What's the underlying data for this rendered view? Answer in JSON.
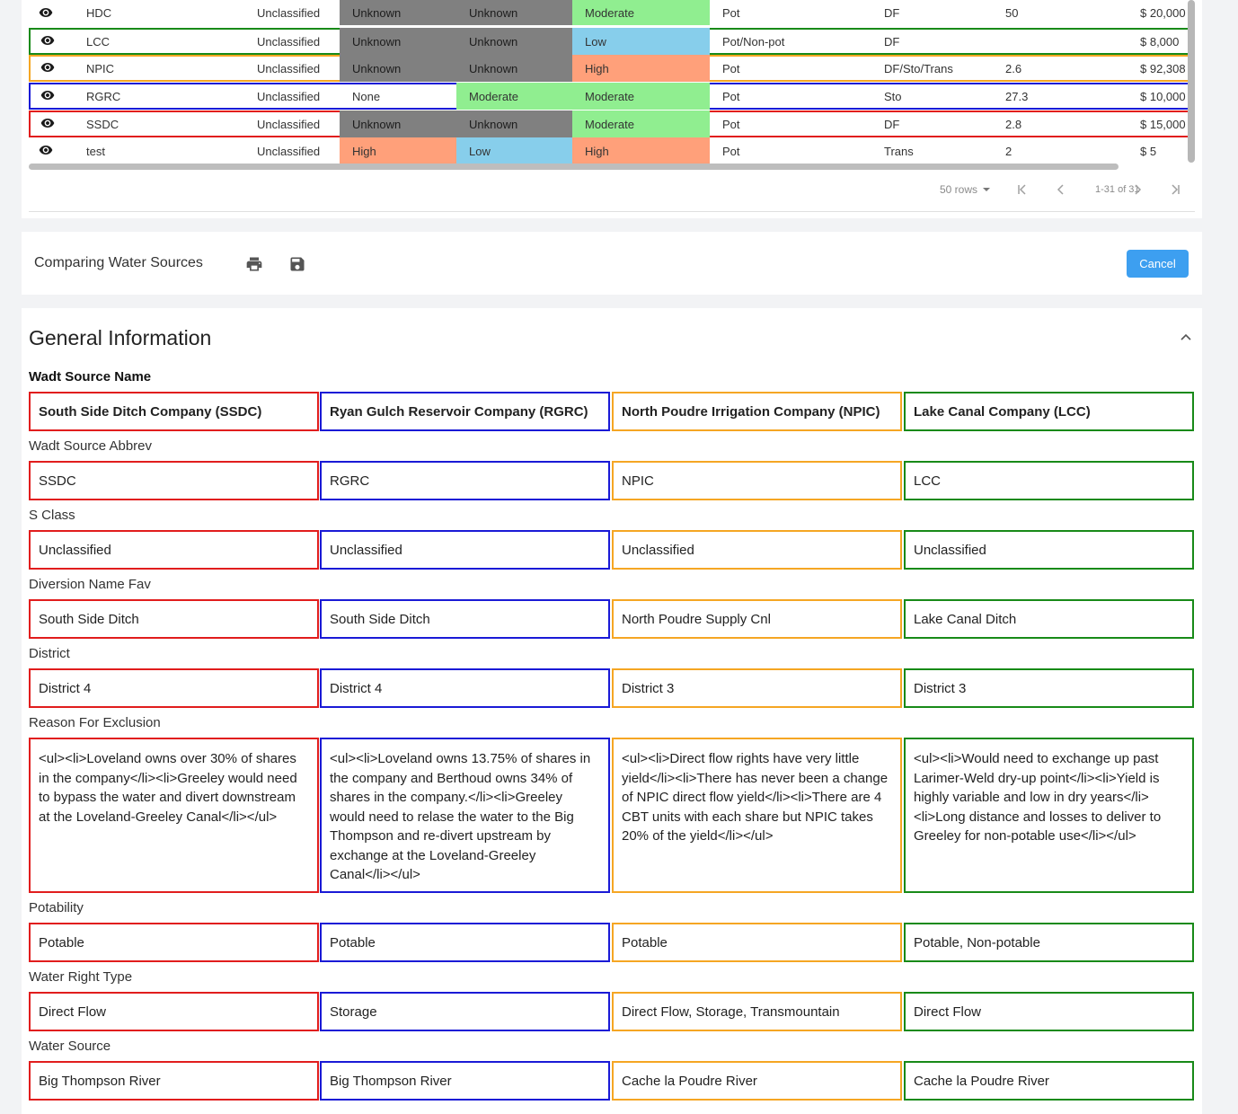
{
  "colors": {
    "gray_cell": "#808080",
    "moderate": "#90ee90",
    "low": "#87ceeb",
    "high": "#ffa07a",
    "ssdc": "#e11d1d",
    "rgrc": "#1a1ad6",
    "npic": "#f5a623",
    "lcc": "#188a18",
    "cancel": "#3d9ff0"
  },
  "table": {
    "rows": [
      {
        "name": "HDC",
        "s_class": "Unclassified",
        "c1": "Unknown",
        "c2": "Unknown",
        "c3": "Moderate",
        "pot": "Pot",
        "type": "DF",
        "num": "50",
        "price": "$ 20,000"
      },
      {
        "name": "LCC",
        "s_class": "Unclassified",
        "c1": "Unknown",
        "c2": "Unknown",
        "c3": "Low",
        "pot": "Pot/Non-pot",
        "type": "DF",
        "num": "",
        "price": "$ 8,000"
      },
      {
        "name": "NPIC",
        "s_class": "Unclassified",
        "c1": "Unknown",
        "c2": "Unknown",
        "c3": "High",
        "pot": "Pot",
        "type": "DF/Sto/Trans",
        "num": "2.6",
        "price": "$ 92,308"
      },
      {
        "name": "RGRC",
        "s_class": "Unclassified",
        "c1": "None",
        "c2": "Moderate",
        "c3": "Moderate",
        "pot": "Pot",
        "type": "Sto",
        "num": "27.3",
        "price": "$ 10,000"
      },
      {
        "name": "SSDC",
        "s_class": "Unclassified",
        "c1": "Unknown",
        "c2": "Unknown",
        "c3": "Moderate",
        "pot": "Pot",
        "type": "DF",
        "num": "2.8",
        "price": "$ 15,000"
      },
      {
        "name": "test",
        "s_class": "Unclassified",
        "c1": "High",
        "c2": "Low",
        "c3": "High",
        "pot": "Pot",
        "type": "Trans",
        "num": "2",
        "price": "$ 5"
      }
    ],
    "pager": {
      "rows_label": "50 rows",
      "range_label": "1-31 of 31"
    }
  },
  "compare": {
    "title": "Comparing Water Sources",
    "cancel_label": "Cancel"
  },
  "general": {
    "title": "General Information",
    "fields": [
      {
        "label": "Wadt Source Name",
        "values": [
          "South Side Ditch Company (SSDC)",
          "Ryan Gulch Reservoir Company (RGRC)",
          "North Poudre Irrigation Company (NPIC)",
          "Lake Canal Company (LCC)"
        ]
      },
      {
        "label": "Wadt Source Abbrev",
        "values": [
          "SSDC",
          "RGRC",
          "NPIC",
          "LCC"
        ]
      },
      {
        "label": "S Class",
        "values": [
          "Unclassified",
          "Unclassified",
          "Unclassified",
          "Unclassified"
        ]
      },
      {
        "label": "Diversion Name Fav",
        "values": [
          "South Side Ditch",
          "South Side Ditch",
          "North Poudre Supply Cnl",
          "Lake Canal Ditch"
        ]
      },
      {
        "label": "District",
        "values": [
          "District 4",
          "District 4",
          "District 3",
          "District 3"
        ]
      },
      {
        "label": "Reason For Exclusion",
        "values": [
          "<ul><li>Loveland owns over 30% of shares in the company</li><li>Greeley would need to bypass the water and divert downstream at the Loveland-Greeley Canal</li></ul>",
          "<ul><li>Loveland owns 13.75% of shares in the company and Berthoud owns 34% of shares in the company.</li><li>Greeley would need to relase the water to the Big Thompson and re-divert upstream by exchange at the Loveland-Greeley Canal</li></ul>",
          "<ul><li>Direct flow rights have very little yield</li><li>There has never been a change of NPIC direct flow yield</li><li>There are 4 CBT units with each share but NPIC takes 20% of the yield</li></ul>",
          "<ul><li>Would need to exchange up past Larimer-Weld dry-up point</li><li>Yield is highly variable and low in dry years</li><li>Long distance and losses to deliver to Greeley for non-potable use</li></ul>"
        ]
      },
      {
        "label": "Potability",
        "values": [
          "Potable",
          "Potable",
          "Potable",
          "Potable, Non-potable"
        ]
      },
      {
        "label": "Water Right Type",
        "values": [
          "Direct Flow",
          "Storage",
          "Direct Flow, Storage, Transmountain",
          "Direct Flow"
        ]
      },
      {
        "label": "Water Source",
        "values": [
          "Big Thompson River",
          "Big Thompson River",
          "Cache la Poudre River",
          "Cache la Poudre River"
        ]
      }
    ]
  }
}
